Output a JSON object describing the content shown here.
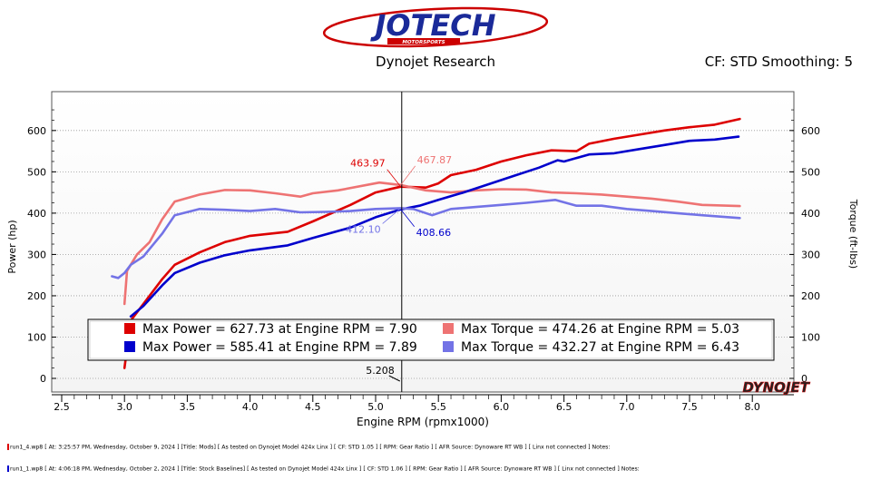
{
  "header": {
    "logo_text": "JOTECH",
    "logo_subtext": "MOTORSPORTS",
    "center_title": "Dynojet Research",
    "right_text": "CF: STD Smoothing: 5",
    "watermark": "DYNOJET"
  },
  "colors": {
    "run1_power": "#dd0000",
    "run1_torque": "#ee7373",
    "run2_power": "#0000cc",
    "run2_torque": "#7373e6"
  },
  "chart_data": {
    "type": "line",
    "xlabel": "Engine RPM (rpmx1000)",
    "ylabel_left": "Power (hp)",
    "ylabel_right": "Torque (ft-lbs)",
    "xlim": [
      2.5,
      8.0
    ],
    "ylim": [
      0,
      650
    ],
    "x_ticks": [
      "2.5",
      "3.0",
      "3.5",
      "4.0",
      "4.5",
      "5.0",
      "5.5",
      "6.0",
      "6.5",
      "7.0",
      "7.5",
      "8.0"
    ],
    "y_ticks": [
      "0",
      "100",
      "200",
      "300",
      "400",
      "500",
      "600"
    ],
    "cursor": {
      "x": 5.208,
      "label": "5.208"
    },
    "annotations": [
      {
        "text": "463.97",
        "x": 5.2,
        "y": 464,
        "series": "run1_power"
      },
      {
        "text": "467.87",
        "x": 5.2,
        "y": 468,
        "series": "run1_torque"
      },
      {
        "text": "412.10",
        "x": 5.2,
        "y": 412,
        "series": "run2_torque"
      },
      {
        "text": "408.66",
        "x": 5.2,
        "y": 409,
        "series": "run2_power"
      }
    ],
    "legend": [
      {
        "color": "#dd0000",
        "text": "Max Power = 627.73 at Engine RPM = 7.90"
      },
      {
        "color": "#ee7373",
        "text": "Max Torque = 474.26 at Engine RPM = 5.03"
      },
      {
        "color": "#0000cc",
        "text": "Max Power = 585.41 at Engine RPM = 7.89"
      },
      {
        "color": "#7373e6",
        "text": "Max Torque = 432.27 at Engine RPM = 6.43"
      }
    ],
    "series": [
      {
        "key": "run1_power",
        "color": "#dd0000",
        "points": [
          [
            3.0,
            25
          ],
          [
            3.05,
            140
          ],
          [
            3.15,
            180
          ],
          [
            3.3,
            240
          ],
          [
            3.4,
            275
          ],
          [
            3.6,
            305
          ],
          [
            3.8,
            330
          ],
          [
            4.0,
            345
          ],
          [
            4.3,
            355
          ],
          [
            4.5,
            380
          ],
          [
            4.8,
            420
          ],
          [
            5.0,
            450
          ],
          [
            5.2,
            464
          ],
          [
            5.4,
            462
          ],
          [
            5.5,
            472
          ],
          [
            5.6,
            492
          ],
          [
            5.8,
            505
          ],
          [
            6.0,
            525
          ],
          [
            6.2,
            540
          ],
          [
            6.4,
            552
          ],
          [
            6.6,
            550
          ],
          [
            6.7,
            568
          ],
          [
            6.9,
            580
          ],
          [
            7.1,
            590
          ],
          [
            7.3,
            600
          ],
          [
            7.5,
            608
          ],
          [
            7.7,
            614
          ],
          [
            7.9,
            628
          ]
        ]
      },
      {
        "key": "run1_torque",
        "color": "#ee7373",
        "points": [
          [
            3.0,
            180
          ],
          [
            3.02,
            260
          ],
          [
            3.1,
            300
          ],
          [
            3.2,
            330
          ],
          [
            3.3,
            385
          ],
          [
            3.4,
            428
          ],
          [
            3.6,
            445
          ],
          [
            3.8,
            456
          ],
          [
            4.0,
            455
          ],
          [
            4.2,
            448
          ],
          [
            4.4,
            440
          ],
          [
            4.5,
            448
          ],
          [
            4.7,
            455
          ],
          [
            5.03,
            474
          ],
          [
            5.2,
            468
          ],
          [
            5.4,
            455
          ],
          [
            5.6,
            450
          ],
          [
            5.8,
            455
          ],
          [
            6.0,
            458
          ],
          [
            6.2,
            457
          ],
          [
            6.4,
            450
          ],
          [
            6.6,
            448
          ],
          [
            6.8,
            445
          ],
          [
            7.0,
            440
          ],
          [
            7.2,
            435
          ],
          [
            7.4,
            428
          ],
          [
            7.6,
            420
          ],
          [
            7.9,
            417
          ]
        ]
      },
      {
        "key": "run2_power",
        "color": "#0000cc",
        "points": [
          [
            3.05,
            150
          ],
          [
            3.15,
            175
          ],
          [
            3.3,
            225
          ],
          [
            3.4,
            255
          ],
          [
            3.6,
            280
          ],
          [
            3.8,
            298
          ],
          [
            4.0,
            310
          ],
          [
            4.3,
            322
          ],
          [
            4.5,
            340
          ],
          [
            4.8,
            365
          ],
          [
            5.0,
            390
          ],
          [
            5.2,
            409
          ],
          [
            5.35,
            418
          ],
          [
            5.5,
            432
          ],
          [
            5.7,
            450
          ],
          [
            5.9,
            470
          ],
          [
            6.1,
            490
          ],
          [
            6.3,
            510
          ],
          [
            6.45,
            528
          ],
          [
            6.5,
            525
          ],
          [
            6.7,
            542
          ],
          [
            6.9,
            545
          ],
          [
            7.1,
            555
          ],
          [
            7.3,
            565
          ],
          [
            7.5,
            575
          ],
          [
            7.7,
            578
          ],
          [
            7.89,
            585
          ]
        ]
      },
      {
        "key": "run2_torque",
        "color": "#7373e6",
        "points": [
          [
            2.9,
            247
          ],
          [
            2.95,
            243
          ],
          [
            3.0,
            255
          ],
          [
            3.05,
            275
          ],
          [
            3.15,
            295
          ],
          [
            3.3,
            350
          ],
          [
            3.4,
            395
          ],
          [
            3.6,
            410
          ],
          [
            3.8,
            408
          ],
          [
            4.0,
            405
          ],
          [
            4.2,
            410
          ],
          [
            4.4,
            402
          ],
          [
            4.6,
            403
          ],
          [
            4.8,
            405
          ],
          [
            5.0,
            410
          ],
          [
            5.2,
            412
          ],
          [
            5.3,
            410
          ],
          [
            5.45,
            395
          ],
          [
            5.6,
            410
          ],
          [
            5.8,
            415
          ],
          [
            6.0,
            420
          ],
          [
            6.2,
            425
          ],
          [
            6.43,
            432
          ],
          [
            6.6,
            418
          ],
          [
            6.8,
            418
          ],
          [
            7.0,
            410
          ],
          [
            7.2,
            405
          ],
          [
            7.4,
            400
          ],
          [
            7.6,
            395
          ],
          [
            7.9,
            388
          ]
        ]
      }
    ]
  },
  "run_info": [
    {
      "color": "#dd0000",
      "text": "run1_4.wp8 [ At: 3:25:57 PM, Wednesday, October 9, 2024 ] [Title: Mods]  [ As tested on Dynojet Model 424x Linx ]  [ CF: STD 1.05 ]  [ RPM: Gear Ratio ]  [ AFR Source: Dynoware RT WB ]  [ Linx not connected ]  Notes:"
    },
    {
      "color": "#0000cc",
      "text": "run1_1.wp8 [ At: 4:06:18 PM, Wednesday, October 2, 2024 ] [Title: Stock Baselines]  [ As tested on Dynojet Model 424x Linx ]  [ CF: STD 1.06 ]  [ RPM: Gear Ratio ]  [ AFR Source: Dynoware RT WB ]  [ Linx not connected ]  Notes:"
    }
  ]
}
